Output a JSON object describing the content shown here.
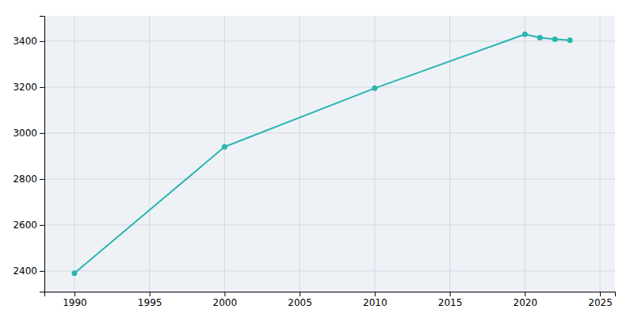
{
  "chart_data": {
    "type": "line",
    "x": [
      1990,
      2000,
      2010,
      2020,
      2021,
      2022,
      2023
    ],
    "values": [
      2390,
      2940,
      3195,
      3430,
      3415,
      3408,
      3404
    ],
    "color": "#2ab5b0",
    "marker": "circle",
    "xlim": [
      1988,
      2026
    ],
    "ylim": [
      2310,
      3510
    ],
    "xticks": [
      1990,
      1995,
      2000,
      2005,
      2010,
      2015,
      2020,
      2025
    ],
    "yticks": [
      2400,
      2600,
      2800,
      3000,
      3200,
      3400
    ],
    "grid": true
  }
}
